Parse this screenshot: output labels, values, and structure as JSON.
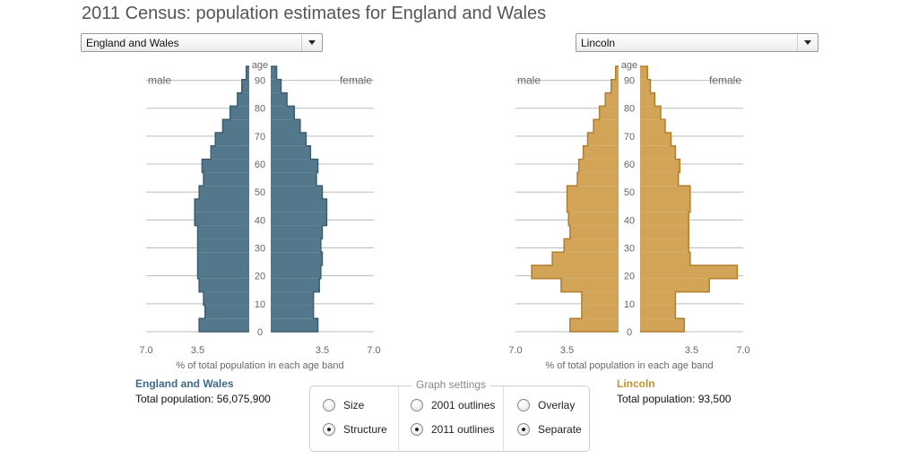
{
  "title": "2011 Census: population estimates for England and Wales",
  "left_dropdown": {
    "value": "England and Wales"
  },
  "right_dropdown": {
    "value": "Lincoln"
  },
  "left_summary": {
    "area": "England and Wales",
    "population": "Total population: 56,075,900"
  },
  "right_summary": {
    "area": "Lincoln",
    "population": "Total population: 93,500"
  },
  "settings": {
    "legend": "Graph settings",
    "options": [
      {
        "label": "Size",
        "selected": false
      },
      {
        "label": "Structure",
        "selected": true
      },
      {
        "label": "2001 outlines",
        "selected": false
      },
      {
        "label": "2011 outlines",
        "selected": true
      },
      {
        "label": "Overlay",
        "selected": false
      },
      {
        "label": "Separate",
        "selected": true
      }
    ]
  },
  "colors": {
    "left_fill": "#53788b",
    "left_stroke": "#3b5e70",
    "right_fill": "#d1a458",
    "right_stroke": "#b07f2c",
    "grid": "#bdbdbd"
  },
  "chart_data": [
    {
      "type": "bar",
      "subtype": "population-pyramid",
      "area": "England and Wales",
      "xlabel": "% of total population in each age band",
      "ylabel": "age",
      "xlim": [
        0,
        7.0
      ],
      "xticks": [
        "7.0",
        "3.5",
        "3.5",
        "7.0"
      ],
      "yticks": [
        0,
        10,
        20,
        30,
        40,
        50,
        60,
        70,
        80,
        90
      ],
      "ylim": [
        0,
        95
      ],
      "left_label": "male",
      "right_label": "female",
      "age_bands": [
        "0-4",
        "5-9",
        "10-14",
        "15-19",
        "20-24",
        "25-29",
        "30-34",
        "35-39",
        "40-44",
        "45-49",
        "50-54",
        "55-59",
        "60-64",
        "65-69",
        "70-74",
        "75-79",
        "80-84",
        "85-89",
        "90-94",
        "95+"
      ],
      "series": [
        {
          "name": "male",
          "values": [
            3.4,
            3.0,
            3.1,
            3.4,
            3.5,
            3.5,
            3.5,
            3.5,
            3.7,
            3.7,
            3.4,
            3.1,
            3.2,
            2.6,
            2.3,
            1.8,
            1.3,
            0.8,
            0.5,
            0.2
          ]
        },
        {
          "name": "female",
          "values": [
            3.2,
            2.9,
            2.9,
            3.3,
            3.4,
            3.5,
            3.4,
            3.5,
            3.8,
            3.8,
            3.5,
            3.1,
            3.2,
            2.7,
            2.4,
            2.0,
            1.6,
            1.1,
            0.7,
            0.4
          ]
        }
      ]
    },
    {
      "type": "bar",
      "subtype": "population-pyramid",
      "area": "Lincoln",
      "xlabel": "% of total population in each age band",
      "ylabel": "age",
      "xlim": [
        0,
        7.0
      ],
      "xticks": [
        "7.0",
        "3.5",
        "3.5",
        "7.0"
      ],
      "yticks": [
        0,
        10,
        20,
        30,
        40,
        50,
        60,
        70,
        80,
        90
      ],
      "ylim": [
        0,
        95
      ],
      "left_label": "male",
      "right_label": "female",
      "age_bands": [
        "0-4",
        "5-9",
        "10-14",
        "15-19",
        "20-24",
        "25-29",
        "30-34",
        "35-39",
        "40-44",
        "45-49",
        "50-54",
        "55-59",
        "60-64",
        "65-69",
        "70-74",
        "75-79",
        "80-84",
        "85-89",
        "90-94",
        "95+"
      ],
      "series": [
        {
          "name": "male",
          "values": [
            3.3,
            2.5,
            2.5,
            3.9,
            5.9,
            4.5,
            3.7,
            3.3,
            3.4,
            3.5,
            3.5,
            2.8,
            2.7,
            2.4,
            2.1,
            1.7,
            1.3,
            0.9,
            0.5,
            0.2
          ]
        },
        {
          "name": "female",
          "values": [
            3.0,
            2.4,
            2.4,
            4.7,
            6.6,
            3.4,
            3.3,
            3.3,
            3.3,
            3.4,
            3.4,
            2.6,
            2.7,
            2.4,
            2.1,
            1.7,
            1.4,
            1.0,
            0.7,
            0.5
          ]
        }
      ]
    }
  ]
}
